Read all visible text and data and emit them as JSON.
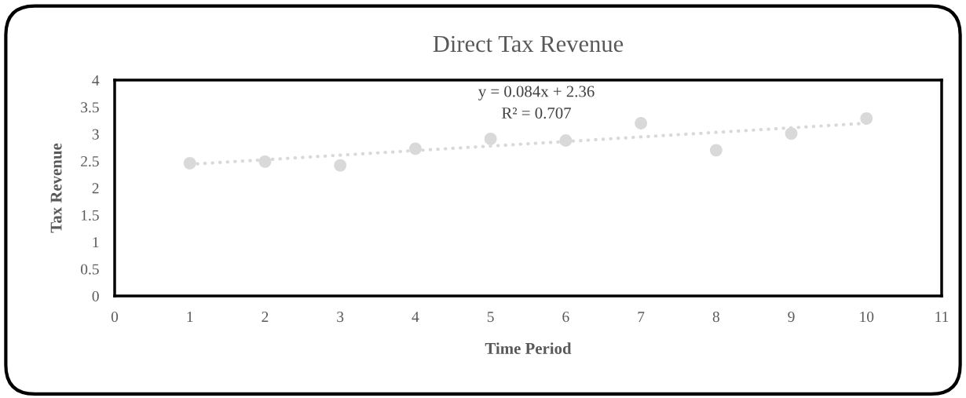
{
  "chart_data": {
    "type": "scatter",
    "title": "Direct Tax Revenue",
    "xlabel": "Time Period",
    "ylabel": "Tax Revenue",
    "x": [
      1,
      2,
      3,
      4,
      5,
      6,
      7,
      8,
      9,
      10
    ],
    "series": [
      {
        "color": "#d9d9d9",
        "values": [
          2.46,
          2.49,
          2.42,
          2.73,
          2.91,
          2.88,
          3.2,
          2.7,
          3.01,
          3.29
        ]
      },
      {
        "type": "line",
        "color": "#d9d9d9",
        "x": [
          1,
          10
        ],
        "values": [
          2.44,
          3.2
        ],
        "line_style": "dotted",
        "marker": "none"
      }
    ],
    "annotations": [
      "y = 0.084x + 2.36",
      "R² = 0.707"
    ],
    "marker": "circle",
    "xlim": [
      0,
      11
    ],
    "xticks": [
      0,
      1,
      2,
      3,
      4,
      5,
      6,
      7,
      8,
      9,
      10,
      11
    ],
    "ylim": [
      0,
      4
    ],
    "yticks": [
      0,
      0.5,
      1,
      1.5,
      2,
      2.5,
      3,
      3.5,
      4
    ],
    "grid": false,
    "legend": false
  }
}
